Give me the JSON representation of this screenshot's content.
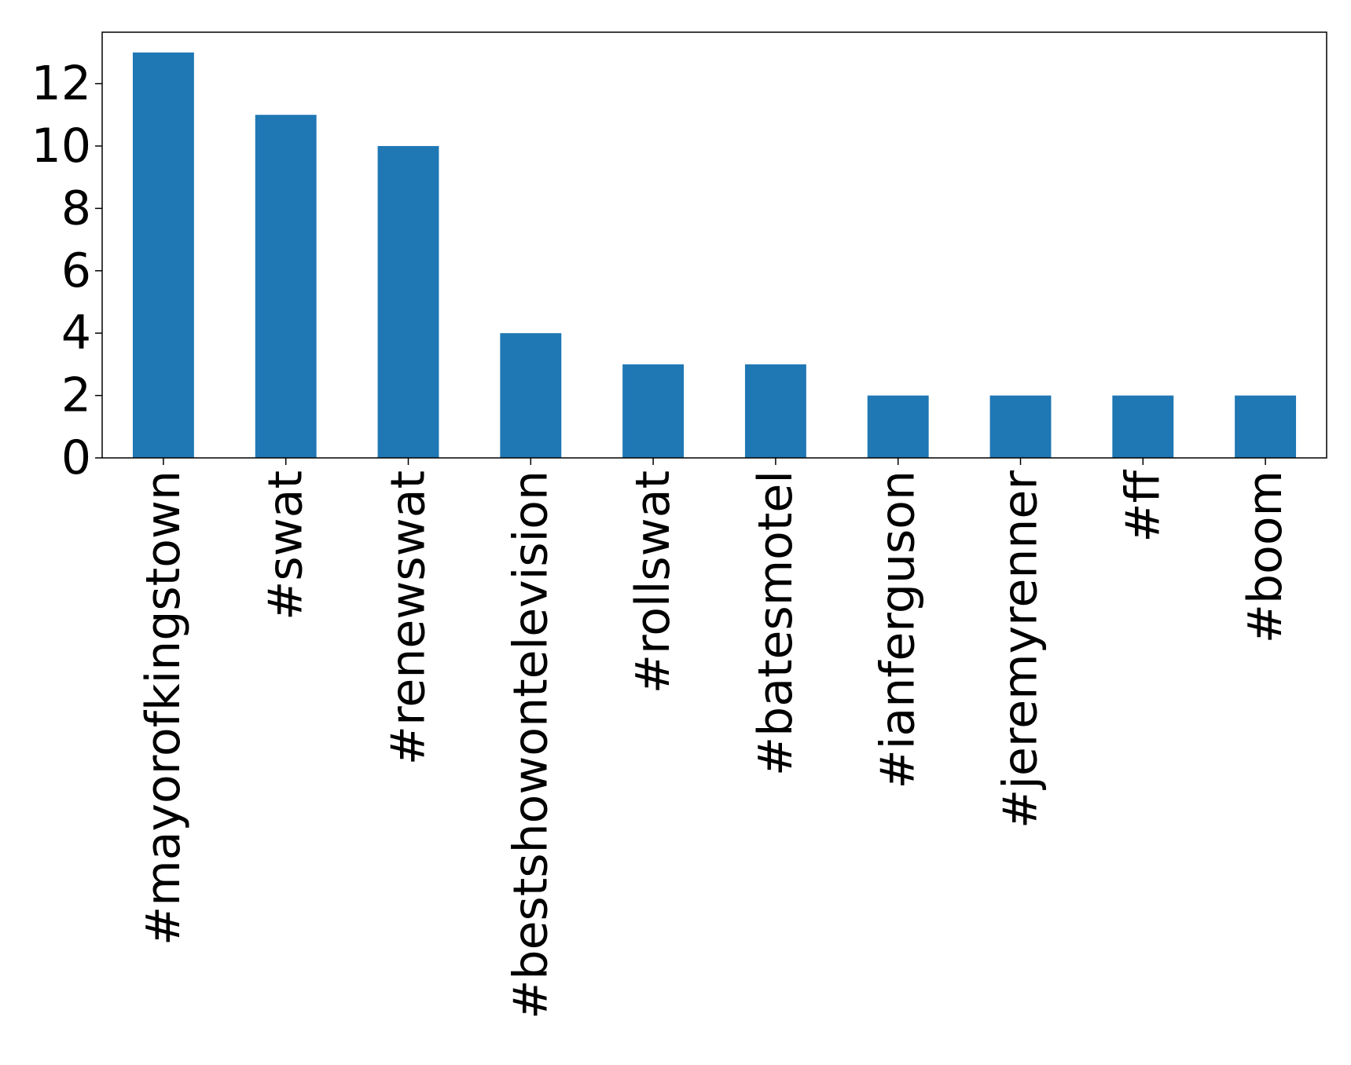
{
  "chart_data": {
    "type": "bar",
    "categories": [
      "#mayorofkingstown",
      "#swat",
      "#renewswat",
      "#bestshowontelevision",
      "#rollswat",
      "#batesmotel",
      "#ianferguson",
      "#jeremyrenner",
      "#ff",
      "#boom"
    ],
    "values": [
      13,
      11,
      10,
      4,
      3,
      3,
      2,
      2,
      2,
      2
    ],
    "title": "",
    "xlabel": "",
    "ylabel": "",
    "ylim": [
      0,
      13.65
    ],
    "yticks": [
      0,
      2,
      4,
      6,
      8,
      10,
      12
    ],
    "grid": false,
    "legend": "none",
    "bar_color": "#1f77b4",
    "axis_color": "#000000"
  }
}
